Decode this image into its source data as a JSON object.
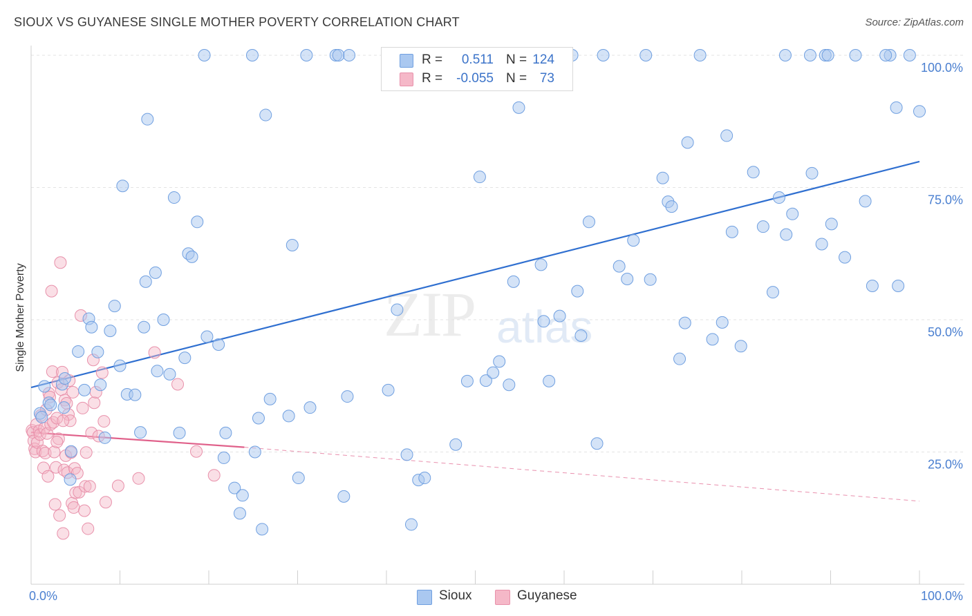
{
  "header": {
    "title": "SIOUX VS GUYANESE SINGLE MOTHER POVERTY CORRELATION CHART",
    "source": "Source: ZipAtlas.com"
  },
  "watermark": {
    "zip": "ZIP",
    "atlas": "atlas"
  },
  "legend_top": {
    "rows": [
      {
        "r_label": "R =",
        "r_value": "0.511",
        "n_label": "N =",
        "n_value": "124",
        "color": "#aac8f0"
      },
      {
        "r_label": "R =",
        "r_value": "-0.055",
        "n_label": "N =",
        "n_value": "73",
        "color": "#f5b8c8"
      }
    ]
  },
  "legend_bottom": {
    "items": [
      {
        "label": "Sioux",
        "color": "#aac8f0"
      },
      {
        "label": "Guyanese",
        "color": "#f5b8c8"
      }
    ]
  },
  "colors": {
    "sioux_fill": "#aac8f0",
    "sioux_stroke": "#6f9fe0",
    "sioux_line": "#2f6fd0",
    "guyanese_fill": "#f5b8c8",
    "guyanese_stroke": "#e890aa",
    "guyanese_line": "#e0608a",
    "grid": "#e3e3e3",
    "tick_text": "#4a7fd0"
  },
  "chart_data": {
    "type": "scatter",
    "title": "SIOUX VS GUYANESE SINGLE MOTHER POVERTY CORRELATION CHART",
    "xlabel": "",
    "ylabel": "Single Mother Poverty",
    "xlim": [
      0,
      100
    ],
    "ylim": [
      0,
      100
    ],
    "x_tick_labels": [
      "0.0%",
      "100.0%"
    ],
    "y_ticks": [
      25,
      50,
      75,
      100
    ],
    "y_tick_labels": [
      "25.0%",
      "50.0%",
      "75.0%",
      "100.0%"
    ],
    "grid": true,
    "series": [
      {
        "name": "Sioux",
        "r": 0.511,
        "n": 124,
        "trend": {
          "x": [
            0,
            100
          ],
          "y": [
            37.2,
            79.9
          ]
        },
        "points": [
          [
            1,
            32.3
          ],
          [
            1.2,
            31.6
          ],
          [
            1.5,
            37.4
          ],
          [
            2,
            34.3
          ],
          [
            2.2,
            33.9
          ],
          [
            3.5,
            37.8
          ],
          [
            3.8,
            38.9
          ],
          [
            3.7,
            33.4
          ],
          [
            4.5,
            25.1
          ],
          [
            4.4,
            19.8
          ],
          [
            5.3,
            44
          ],
          [
            6,
            36.7
          ],
          [
            6.5,
            50.2
          ],
          [
            6.8,
            48.6
          ],
          [
            7.5,
            43.9
          ],
          [
            7.8,
            37.7
          ],
          [
            8.3,
            27.7
          ],
          [
            8.9,
            47.9
          ],
          [
            9.4,
            52.6
          ],
          [
            10,
            41.3
          ],
          [
            10.3,
            75.3
          ],
          [
            10.8,
            35.9
          ],
          [
            11.7,
            35.8
          ],
          [
            12.3,
            28.7
          ],
          [
            12.7,
            48.6
          ],
          [
            12.9,
            57.2
          ],
          [
            13.1,
            87.9
          ],
          [
            14,
            58.9
          ],
          [
            14.2,
            40.3
          ],
          [
            14.9,
            50
          ],
          [
            15.6,
            39.7
          ],
          [
            16.1,
            73.1
          ],
          [
            16.7,
            28.6
          ],
          [
            17.3,
            42.8
          ],
          [
            17.7,
            62.5
          ],
          [
            18.1,
            61.9
          ],
          [
            18.7,
            68.5
          ],
          [
            19.5,
            100
          ],
          [
            19.8,
            46.8
          ],
          [
            21.1,
            45.3
          ],
          [
            21.7,
            23.9
          ],
          [
            21.9,
            28.6
          ],
          [
            22.9,
            18.2
          ],
          [
            23.5,
            13.4
          ],
          [
            23.8,
            16.8
          ],
          [
            24.9,
            100
          ],
          [
            25.2,
            25
          ],
          [
            25.6,
            31.4
          ],
          [
            26,
            10.4
          ],
          [
            26.4,
            88.7
          ],
          [
            26.9,
            35
          ],
          [
            29,
            31.8
          ],
          [
            29.4,
            64.1
          ],
          [
            30.1,
            20.1
          ],
          [
            31,
            100
          ],
          [
            31.4,
            33.4
          ],
          [
            34.3,
            100
          ],
          [
            34.6,
            100
          ],
          [
            35.2,
            16.6
          ],
          [
            35.6,
            35.5
          ],
          [
            35.8,
            100
          ],
          [
            40.2,
            36.7
          ],
          [
            41.2,
            51.9
          ],
          [
            42.3,
            24.5
          ],
          [
            42.8,
            11.3
          ],
          [
            43.6,
            19.7
          ],
          [
            44.3,
            20.1
          ],
          [
            47.7,
            100
          ],
          [
            47.8,
            26.4
          ],
          [
            48.1,
            100
          ],
          [
            49.1,
            38.4
          ],
          [
            50.5,
            77
          ],
          [
            51.2,
            38.5
          ],
          [
            52,
            40
          ],
          [
            52.7,
            42.1
          ],
          [
            53.8,
            37.7
          ],
          [
            54.3,
            57.2
          ],
          [
            54.9,
            90.1
          ],
          [
            57.4,
            60.4
          ],
          [
            57.7,
            49.7
          ],
          [
            58.3,
            38.4
          ],
          [
            59.5,
            50.7
          ],
          [
            60.9,
            100
          ],
          [
            61.5,
            55.4
          ],
          [
            61.9,
            47
          ],
          [
            62.8,
            68.5
          ],
          [
            63.7,
            26.6
          ],
          [
            64.4,
            100
          ],
          [
            66.2,
            60.1
          ],
          [
            67.1,
            57.7
          ],
          [
            67.8,
            65
          ],
          [
            69.2,
            100
          ],
          [
            69.7,
            57.6
          ],
          [
            71.1,
            76.8
          ],
          [
            71.7,
            72.3
          ],
          [
            72.1,
            71.4
          ],
          [
            73,
            42.6
          ],
          [
            73.6,
            49.4
          ],
          [
            73.9,
            83.5
          ],
          [
            75.3,
            100
          ],
          [
            76.7,
            46.3
          ],
          [
            77.8,
            49.5
          ],
          [
            78.3,
            84.8
          ],
          [
            78.9,
            66.6
          ],
          [
            79.9,
            45
          ],
          [
            81.3,
            77.9
          ],
          [
            82.4,
            67.6
          ],
          [
            83.5,
            55.2
          ],
          [
            84.2,
            73.1
          ],
          [
            84.9,
            100
          ],
          [
            85,
            66.1
          ],
          [
            85.7,
            70
          ],
          [
            87.7,
            100
          ],
          [
            87.9,
            77.7
          ],
          [
            89,
            64.3
          ],
          [
            89.4,
            100
          ],
          [
            89.7,
            100
          ],
          [
            90.1,
            68.1
          ],
          [
            91.6,
            61.8
          ],
          [
            92.8,
            100
          ],
          [
            93.9,
            72.4
          ],
          [
            94.7,
            56.4
          ],
          [
            96.7,
            100
          ],
          [
            97.4,
            90.1
          ],
          [
            97.6,
            56.4
          ],
          [
            98.9,
            100
          ],
          [
            100,
            89.4
          ],
          [
            96.2,
            100
          ]
        ]
      },
      {
        "name": "Guyanese",
        "r": -0.055,
        "n": 73,
        "trend": {
          "x": [
            0,
            24
          ],
          "y": [
            28.7,
            25.9
          ]
        },
        "trend_extrapolated": {
          "x": [
            24,
            100
          ],
          "y": [
            25.9,
            15.7
          ]
        },
        "points": [
          [
            0.1,
            29.1
          ],
          [
            0.2,
            28.7
          ],
          [
            0.3,
            27.1
          ],
          [
            0.4,
            25.6
          ],
          [
            0.5,
            25
          ],
          [
            0.6,
            30.2
          ],
          [
            0.7,
            26.8
          ],
          [
            0.9,
            29
          ],
          [
            1,
            28.3
          ],
          [
            1.1,
            31.9
          ],
          [
            1.3,
            25.2
          ],
          [
            1.4,
            22
          ],
          [
            1.5,
            29.5
          ],
          [
            1.6,
            24.8
          ],
          [
            1.8,
            28.5
          ],
          [
            1.9,
            20.4
          ],
          [
            2,
            36.1
          ],
          [
            2.1,
            35.4
          ],
          [
            2.2,
            30.2
          ],
          [
            2.3,
            55.4
          ],
          [
            2.4,
            40.2
          ],
          [
            2.5,
            30.6
          ],
          [
            2.6,
            25
          ],
          [
            2.7,
            15.1
          ],
          [
            2.8,
            22.1
          ],
          [
            2.9,
            31.4
          ],
          [
            3,
            38.1
          ],
          [
            3.1,
            27.5
          ],
          [
            3.2,
            13
          ],
          [
            3.3,
            60.8
          ],
          [
            3.4,
            36.8
          ],
          [
            3.5,
            40.1
          ],
          [
            3.6,
            9.6
          ],
          [
            3.7,
            21.6
          ],
          [
            3.8,
            34.8
          ],
          [
            3.9,
            24.3
          ],
          [
            4,
            34.2
          ],
          [
            4.1,
            21.1
          ],
          [
            4.2,
            32.1
          ],
          [
            4.3,
            38.5
          ],
          [
            4.4,
            30.9
          ],
          [
            4.5,
            24.9
          ],
          [
            4.6,
            15.3
          ],
          [
            4.7,
            36.3
          ],
          [
            4.8,
            14.5
          ],
          [
            4.9,
            21.9
          ],
          [
            5,
            17.3
          ],
          [
            5.2,
            21
          ],
          [
            5.4,
            17.4
          ],
          [
            5.6,
            50.8
          ],
          [
            5.8,
            33.3
          ],
          [
            6,
            13.9
          ],
          [
            6.1,
            18.5
          ],
          [
            6.2,
            24.9
          ],
          [
            6.4,
            10.5
          ],
          [
            6.6,
            18.5
          ],
          [
            6.8,
            28.6
          ],
          [
            7,
            42.4
          ],
          [
            7.1,
            34.3
          ],
          [
            7.3,
            36.3
          ],
          [
            7.6,
            28
          ],
          [
            8,
            40
          ],
          [
            8.2,
            30.8
          ],
          [
            8.4,
            15.5
          ],
          [
            9.8,
            18.6
          ],
          [
            12.1,
            20
          ],
          [
            13.9,
            43.8
          ],
          [
            16.5,
            37.8
          ],
          [
            18.6,
            25.1
          ],
          [
            20.6,
            20.6
          ],
          [
            1.7,
            33
          ],
          [
            2.9,
            26.9
          ],
          [
            3.6,
            30.9
          ]
        ]
      }
    ]
  }
}
